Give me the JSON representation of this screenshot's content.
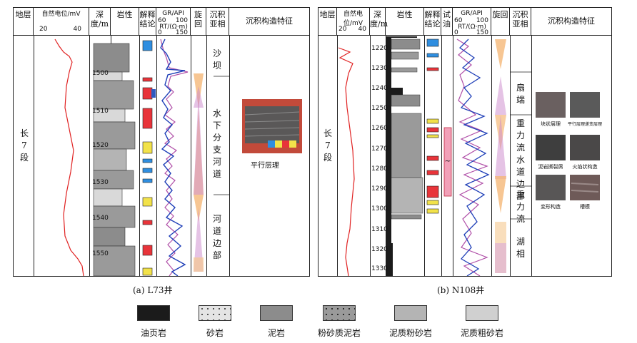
{
  "panel_a": {
    "headers": {
      "stratum": "地层",
      "sp": "自然电位/mV",
      "sp_min": "20",
      "sp_max": "40",
      "depth": "深度/m",
      "lith": "岩性",
      "interp": "解释结论",
      "gr": "GR/API",
      "rt": "RT/(Ω·m)",
      "gr_t1": "60",
      "gr_t2": "100",
      "rt_t1": "0",
      "rt_t2": "150",
      "cycle": "旋回",
      "subfacies": "沉积亚相",
      "structure": "沉积构造特征"
    },
    "stratum_label": "长7段",
    "depth_ticks": [
      "1500",
      "1510",
      "1520",
      "1530",
      "1540",
      "1550"
    ],
    "facies": [
      "沙坝",
      "水下分支河道",
      "河道边部"
    ],
    "photo_caption": "平行层理",
    "caption": "(a)  L73井"
  },
  "panel_b": {
    "headers": {
      "stratum": "地层",
      "sp": "自然电位/mV",
      "sp_min": "20",
      "sp_max": "40",
      "depth": "深度/m",
      "lith": "岩性",
      "interp": "解释结论",
      "test": "试油",
      "gr": "GR/API",
      "rt": "RT/(Ω·m)",
      "gr_t1": "60",
      "gr_t2": "100",
      "rt_t1": "0",
      "rt_t2": "150",
      "cycle": "旋回",
      "subfacies": "沉积亚相",
      "structure": "沉积构造特征"
    },
    "stratum_label": "长7段",
    "depth_ticks": [
      "1220",
      "1230",
      "1240",
      "1250",
      "1260",
      "1270",
      "1280",
      "1290",
      "1300",
      "1310",
      "1320",
      "1330"
    ],
    "facies": [
      "扇端",
      "重力流水道边部",
      "重力流",
      "湖相"
    ],
    "test_mark": "~",
    "photos": [
      "块状层理",
      "平行层理递变层理",
      "泥岩撕裂屑",
      "火焰状构造",
      "变形构造",
      "槽模"
    ],
    "caption": "(b) N108井"
  },
  "legend": [
    {
      "name": "油页岩",
      "fill": "#1b1b1b"
    },
    {
      "name": "砂岩",
      "fill": "#d9d9d9"
    },
    {
      "name": "泥岩",
      "fill": "#8c8c8c"
    },
    {
      "name": "粉砂质泥岩",
      "fill": "#9a9a9a"
    },
    {
      "name": "泥质粉砂岩",
      "fill": "#b4b4b4"
    },
    {
      "name": "泥质粗砂岩",
      "fill": "#d0d0d0"
    }
  ],
  "colors": {
    "gr_curve": "#1f3fb8",
    "rt_curve": "#b04fa8",
    "sp_curve": "#e02020",
    "interp_red": "#e8343a",
    "interp_blue": "#2f8ee0",
    "interp_yellow": "#f2e24a",
    "cycle_orange": "#f5b878",
    "cycle_pink": "#cc88cc"
  }
}
